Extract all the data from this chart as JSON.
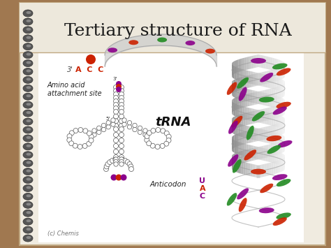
{
  "title": "Tertiary structure of RNA",
  "title_fontsize": 18,
  "title_color": "#1a1a1a",
  "title_font": "serif",
  "background_outer": "#a07850",
  "background_notebook": "#f0ebe0",
  "background_title": "#ede8dc",
  "background_content": "#ffffff",
  "spiral_color": "#6a6a6a",
  "label_acc": "A  C  C",
  "label_3prime": "3'",
  "label_acc_color": "#cc2200",
  "label_amino": "Amino acid\nattachment site",
  "label_trna": "tRNA",
  "label_anticodon": "Anticodon",
  "label_uac": [
    "U",
    "A",
    "C"
  ],
  "uac_colors": [
    "#8B008B",
    "#cc2200",
    "#8B008B"
  ],
  "label_chemis": "(c) Chemis",
  "helix_base_colors": [
    "#8B008B",
    "#228B22",
    "#cc2200",
    "#8B008B",
    "#228B22",
    "#cc2200",
    "#8B008B",
    "#228B22",
    "#cc2200",
    "#8B008B",
    "#228B22",
    "#cc2200",
    "#8B008B",
    "#228B22",
    "#cc2200",
    "#8B008B",
    "#228B22",
    "#cc2200",
    "#8B008B",
    "#228B22",
    "#cc2200",
    "#8B008B",
    "#228B22",
    "#cc2200",
    "#8B008B",
    "#228B22",
    "#cc2200",
    "#8B008B",
    "#228B22",
    "#cc2200"
  ]
}
